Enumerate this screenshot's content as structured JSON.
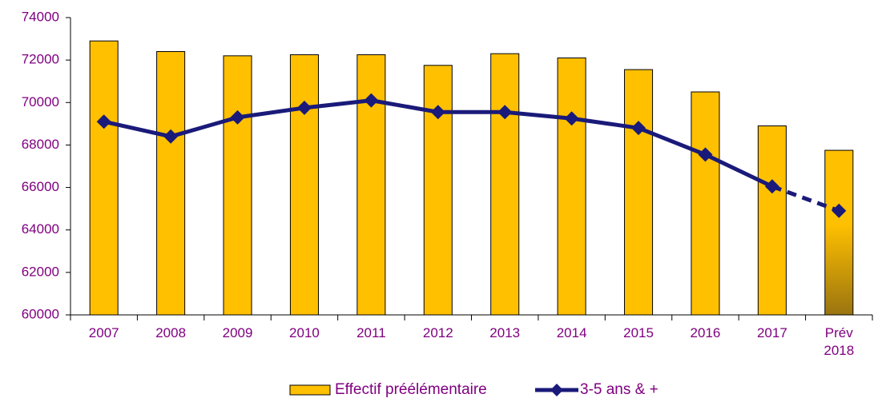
{
  "chart_data": {
    "type": "bar_line",
    "categories": [
      "2007",
      "2008",
      "2009",
      "2010",
      "2011",
      "2012",
      "2013",
      "2014",
      "2015",
      "2016",
      "2017",
      "Prév\n2018"
    ],
    "series": [
      {
        "name": "Effectif préélémentaire",
        "type": "bar",
        "color": "#ffc000",
        "gradient_last_color": "#9a7410",
        "values": [
          72900,
          72400,
          72200,
          72250,
          72250,
          71750,
          72300,
          72100,
          71550,
          70500,
          68900,
          67750
        ]
      },
      {
        "name": "3-5 ans & +",
        "type": "line",
        "color": "#1a1a7a",
        "dashed_from_index": 10,
        "values": [
          69100,
          68400,
          69300,
          69750,
          70100,
          69550,
          69550,
          69250,
          68800,
          67550,
          66050,
          64900
        ]
      }
    ],
    "ylim": [
      60000,
      74000
    ],
    "yticks": [
      60000,
      62000,
      64000,
      66000,
      68000,
      70000,
      72000,
      74000
    ],
    "grid": false,
    "legend": "bottom"
  }
}
